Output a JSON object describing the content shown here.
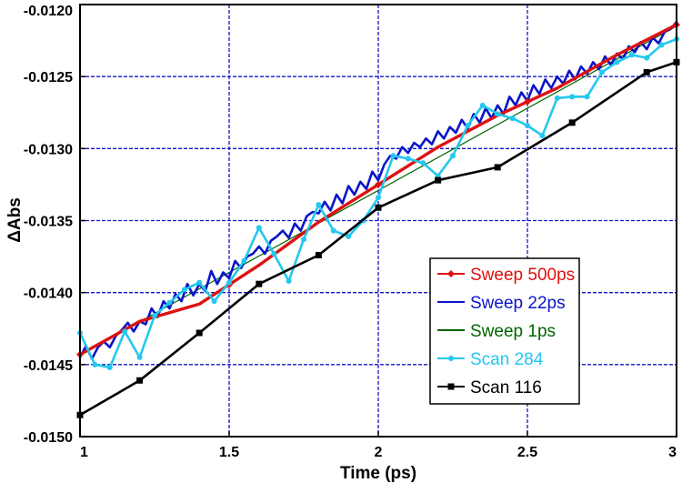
{
  "chart_data": {
    "type": "line",
    "title": "",
    "xlabel": "Time (ps)",
    "ylabel": "ΔAbs",
    "xlim": [
      1,
      3
    ],
    "ylim": [
      -0.015,
      -0.012
    ],
    "grid": true,
    "legend_position": "lower-right",
    "x_ticks": [
      {
        "value": 1,
        "label": "1"
      },
      {
        "value": 1.5,
        "label": "1.5"
      },
      {
        "value": 2,
        "label": "2"
      },
      {
        "value": 2.5,
        "label": "2.5"
      },
      {
        "value": 3,
        "label": "3"
      }
    ],
    "y_ticks": [
      {
        "value": -0.015,
        "label": "-0.0150"
      },
      {
        "value": -0.0145,
        "label": "-0.0145"
      },
      {
        "value": -0.014,
        "label": "-0.0140"
      },
      {
        "value": -0.0135,
        "label": "-0.0135"
      },
      {
        "value": -0.013,
        "label": "-0.0130"
      },
      {
        "value": -0.0125,
        "label": "-0.0125"
      },
      {
        "value": -0.012,
        "label": "-0.0120"
      }
    ],
    "series": [
      {
        "name": "Sweep 1ps",
        "color": "#006400",
        "width": 1.2,
        "marker": "none",
        "x": [
          1.0,
          3.0
        ],
        "y": [
          -0.01443,
          -0.01215
        ]
      },
      {
        "name": "Sweep 22ps",
        "color": "#0a14c8",
        "width": 2.6,
        "marker": "none",
        "x": [
          1.0,
          1.02,
          1.04,
          1.06,
          1.08,
          1.1,
          1.12,
          1.14,
          1.16,
          1.18,
          1.2,
          1.22,
          1.24,
          1.26,
          1.28,
          1.3,
          1.32,
          1.34,
          1.36,
          1.38,
          1.4,
          1.42,
          1.44,
          1.46,
          1.48,
          1.5,
          1.52,
          1.54,
          1.56,
          1.58,
          1.6,
          1.62,
          1.64,
          1.66,
          1.68,
          1.7,
          1.72,
          1.74,
          1.76,
          1.78,
          1.8,
          1.82,
          1.84,
          1.86,
          1.88,
          1.9,
          1.92,
          1.94,
          1.96,
          1.98,
          2.0,
          2.02,
          2.04,
          2.06,
          2.08,
          2.1,
          2.12,
          2.14,
          2.16,
          2.18,
          2.2,
          2.22,
          2.24,
          2.26,
          2.28,
          2.3,
          2.32,
          2.34,
          2.36,
          2.38,
          2.4,
          2.42,
          2.44,
          2.46,
          2.48,
          2.5,
          2.52,
          2.54,
          2.56,
          2.58,
          2.6,
          2.62,
          2.64,
          2.66,
          2.68,
          2.7,
          2.72,
          2.74,
          2.76,
          2.78,
          2.8,
          2.82,
          2.84,
          2.86,
          2.88,
          2.9,
          2.92,
          2.94,
          2.96,
          2.98,
          3.0
        ],
        "y": [
          -0.01445,
          -0.01437,
          -0.01446,
          -0.01438,
          -0.01434,
          -0.01438,
          -0.0143,
          -0.01426,
          -0.01421,
          -0.01427,
          -0.0142,
          -0.01422,
          -0.01411,
          -0.01417,
          -0.01406,
          -0.01411,
          -0.01401,
          -0.01406,
          -0.01394,
          -0.01402,
          -0.01394,
          -0.01399,
          -0.01385,
          -0.01394,
          -0.01386,
          -0.0139,
          -0.01378,
          -0.01383,
          -0.01375,
          -0.01373,
          -0.01368,
          -0.01373,
          -0.01364,
          -0.01361,
          -0.01357,
          -0.01362,
          -0.01352,
          -0.01357,
          -0.01347,
          -0.01344,
          -0.01345,
          -0.01337,
          -0.01343,
          -0.01332,
          -0.01338,
          -0.01326,
          -0.01332,
          -0.01323,
          -0.01328,
          -0.01316,
          -0.01322,
          -0.01311,
          -0.01305,
          -0.01307,
          -0.01299,
          -0.01303,
          -0.01296,
          -0.01299,
          -0.01293,
          -0.01297,
          -0.01288,
          -0.01293,
          -0.01285,
          -0.01289,
          -0.0128,
          -0.01286,
          -0.01276,
          -0.01282,
          -0.01272,
          -0.01279,
          -0.0127,
          -0.01276,
          -0.01264,
          -0.0127,
          -0.01261,
          -0.01267,
          -0.01256,
          -0.01262,
          -0.01252,
          -0.01258,
          -0.0125,
          -0.01255,
          -0.01246,
          -0.01252,
          -0.01243,
          -0.01248,
          -0.0124,
          -0.01245,
          -0.01236,
          -0.01242,
          -0.01234,
          -0.01238,
          -0.01229,
          -0.01233,
          -0.01226,
          -0.01231,
          -0.01223,
          -0.01227,
          -0.01219,
          -0.01217,
          -0.01212
        ]
      },
      {
        "name": "Sweep 500ps",
        "color": "#dd1111",
        "width": 3.4,
        "marker": "diamond",
        "marker_x": [
          1.0,
          1.5,
          2.0,
          2.5,
          3.0
        ],
        "x": [
          1.0,
          1.2,
          1.4,
          1.6,
          1.8,
          2.0,
          2.2,
          2.4,
          2.6,
          2.8,
          3.0
        ],
        "y": [
          -0.01443,
          -0.0142,
          -0.01408,
          -0.01381,
          -0.01351,
          -0.01325,
          -0.01299,
          -0.01277,
          -0.01258,
          -0.01235,
          -0.01214
        ]
      },
      {
        "name": "Scan 284",
        "color": "#22c8ee",
        "width": 2.6,
        "marker": "dot",
        "x": [
          1.0,
          1.05,
          1.1,
          1.15,
          1.2,
          1.25,
          1.3,
          1.35,
          1.4,
          1.45,
          1.5,
          1.55,
          1.6,
          1.65,
          1.7,
          1.75,
          1.8,
          1.85,
          1.9,
          1.95,
          2.0,
          2.05,
          2.1,
          2.15,
          2.2,
          2.25,
          2.3,
          2.35,
          2.4,
          2.45,
          2.5,
          2.55,
          2.6,
          2.65,
          2.7,
          2.75,
          2.8,
          2.85,
          2.9,
          2.95,
          3.0
        ],
        "y": [
          -0.01428,
          -0.0145,
          -0.01452,
          -0.01427,
          -0.01445,
          -0.01416,
          -0.01407,
          -0.01398,
          -0.01393,
          -0.01406,
          -0.01393,
          -0.01378,
          -0.01355,
          -0.01373,
          -0.01392,
          -0.01363,
          -0.01339,
          -0.01357,
          -0.01361,
          -0.0135,
          -0.01334,
          -0.01305,
          -0.01307,
          -0.0131,
          -0.01319,
          -0.01305,
          -0.01284,
          -0.0127,
          -0.01276,
          -0.01279,
          -0.01284,
          -0.01291,
          -0.01265,
          -0.01264,
          -0.01264,
          -0.01247,
          -0.0124,
          -0.01235,
          -0.01237,
          -0.01228,
          -0.01224
        ]
      },
      {
        "name": "Scan 116",
        "color": "#000000",
        "width": 2.6,
        "marker": "square",
        "x": [
          1.0,
          1.2,
          1.4,
          1.6,
          1.8,
          2.0,
          2.2,
          2.4,
          2.65,
          2.9,
          3.0
        ],
        "y": [
          -0.01485,
          -0.01461,
          -0.01428,
          -0.01394,
          -0.01374,
          -0.01341,
          -0.01322,
          -0.01313,
          -0.01282,
          -0.01247,
          -0.0124
        ]
      }
    ],
    "legend": [
      {
        "label": "Sweep 500ps",
        "color": "#dd1111",
        "marker": "diamond"
      },
      {
        "label": "Sweep 22ps",
        "color": "#0a14c8",
        "marker": "none"
      },
      {
        "label": "Sweep 1ps",
        "color": "#006400",
        "marker": "none"
      },
      {
        "label": "Scan 284",
        "color": "#22c8ee",
        "marker": "dot"
      },
      {
        "label": "Scan 116",
        "color": "#000000",
        "marker": "square"
      }
    ],
    "colors": {
      "grid": "#1414c8",
      "axis": "#000000",
      "background": "#ffffff"
    }
  }
}
